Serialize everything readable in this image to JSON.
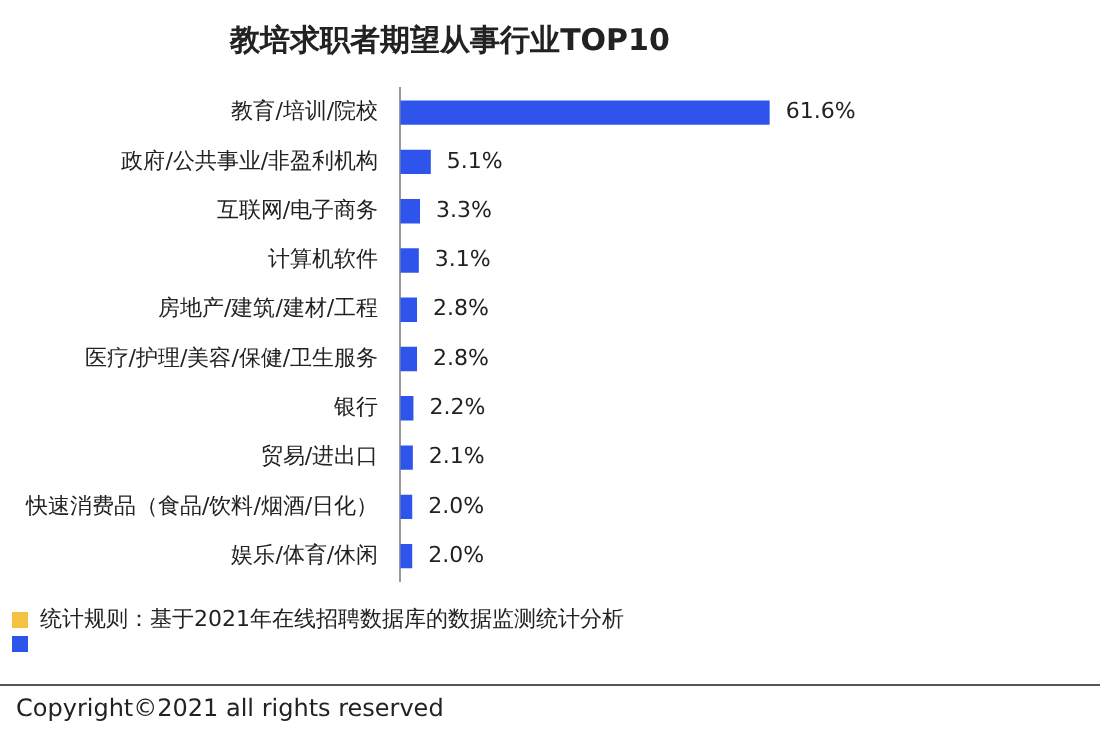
{
  "chart_data": {
    "type": "bar",
    "orientation": "horizontal",
    "title": "教培求职者期望从事行业TOP10",
    "categories": [
      "教育/培训/院校",
      "政府/公共事业/非盈利机构",
      "互联网/电子商务",
      "计算机软件",
      "房地产/建筑/建材/工程",
      "医疗/护理/美容/保健/卫生服务",
      "银行",
      "贸易/进出口",
      "快速消费品（食品/饮料/烟酒/日化）",
      "娱乐/体育/休闲"
    ],
    "values": [
      61.6,
      5.1,
      3.3,
      3.1,
      2.8,
      2.8,
      2.2,
      2.1,
      2.0,
      2.0
    ],
    "value_labels": [
      "61.6%",
      "5.1%",
      "3.3%",
      "3.1%",
      "2.8%",
      "2.8%",
      "2.2%",
      "2.1%",
      "2.0%",
      "2.0%"
    ],
    "color": "#2f54eb",
    "legend": false,
    "tick_labels": "y",
    "annotations": [
      "统计规则：基于2021年在线招聘数据库的数据监测统计分析",
      "Copyright©2021 all rights reserved"
    ]
  }
}
